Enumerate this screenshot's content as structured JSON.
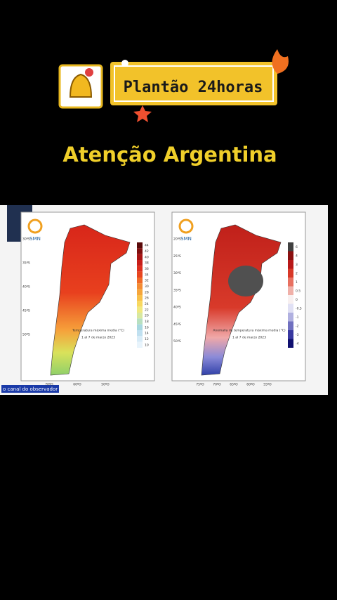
{
  "header": {
    "badge": "Plantão 24horas",
    "title": "Atenção Argentina"
  },
  "video": {
    "channel": "o canal do observador",
    "maps": [
      {
        "logo": "SMN",
        "caption": "Temperatura máxima media (°C)",
        "dates": "1 al 7 de marzo 2023",
        "legend": [
          "44",
          "42",
          "40",
          "38",
          "36",
          "34",
          "32",
          "30",
          "28",
          "26",
          "24",
          "22",
          "20",
          "18",
          "16",
          "14",
          "12",
          "10"
        ],
        "lat_labels": [
          "30ºS",
          "35ºS",
          "40ºS",
          "45ºS",
          "50ºS"
        ],
        "lon_labels": [
          "70ºO",
          "60ºO",
          "50ºO"
        ]
      },
      {
        "logo": "SMN",
        "caption": "Anomalía de temperatura máxima media (°C)",
        "dates": "1 al 7 de marzo 2023",
        "legend": [
          "6",
          "4",
          "3",
          "2",
          "1",
          "0.5",
          "0",
          "-0.5",
          "-1",
          "-2",
          "-3",
          "-4"
        ],
        "lat_labels": [
          "20ºS",
          "25ºS",
          "30ºS",
          "35ºS",
          "40ºS",
          "45ºS",
          "50ºS"
        ],
        "lon_labels": [
          "75ºO",
          "70ºO",
          "65ºO",
          "60ºO",
          "55ºO"
        ]
      }
    ]
  }
}
